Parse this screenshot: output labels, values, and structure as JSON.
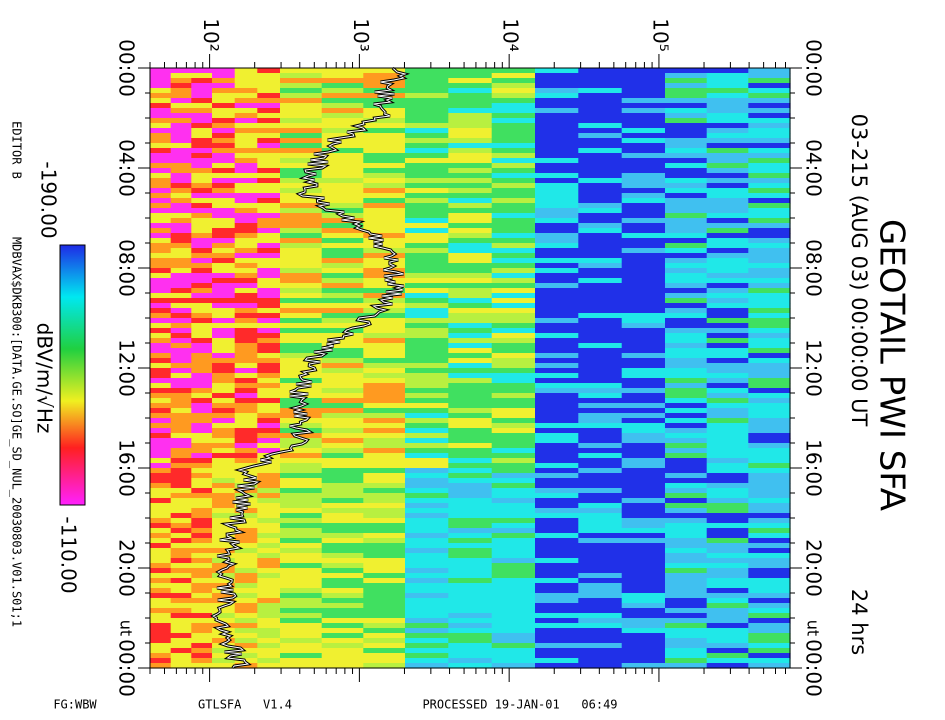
{
  "chart_data": {
    "type": "spectrogram",
    "title": "GEOTAIL PWI SFA",
    "subtitle": "03-215 (AUG 03) 00:00:00 UT",
    "duration": "24 hrs",
    "time_unit": "ut",
    "xscale": "log",
    "xlim": [
      40,
      750000
    ],
    "xticks": [
      {
        "value": 100,
        "label": "10²"
      },
      {
        "value": 1000,
        "label": "10³"
      },
      {
        "value": 10000,
        "label": "10⁴"
      },
      {
        "value": 100000,
        "label": "10⁵"
      }
    ],
    "ylim": [
      0,
      24
    ],
    "yticks": [
      {
        "value": 0,
        "label": "00:00"
      },
      {
        "value": 4,
        "label": "04:00"
      },
      {
        "value": 8,
        "label": "08:00"
      },
      {
        "value": 12,
        "label": "12:00"
      },
      {
        "value": 16,
        "label": "16:00"
      },
      {
        "value": 20,
        "label": "20:00"
      },
      {
        "value": 24,
        "label": "00:00"
      }
    ],
    "colorbar": {
      "label": "dBV/m/√Hz",
      "zlim": [
        -190,
        -110
      ],
      "zlim_labels": [
        "-190.00",
        "-110.00"
      ]
    },
    "footer": {
      "editor": "EDITOR B",
      "file": "MDBVAX$DKB300:[DATA.GE.SO]GE_SD_NUL_20030803.V01.S01;1",
      "filter": "FG:WBW",
      "program": "GTLSFA   V1.4",
      "processed": "PROCESSED 19-JAN-01   06:49"
    }
  }
}
